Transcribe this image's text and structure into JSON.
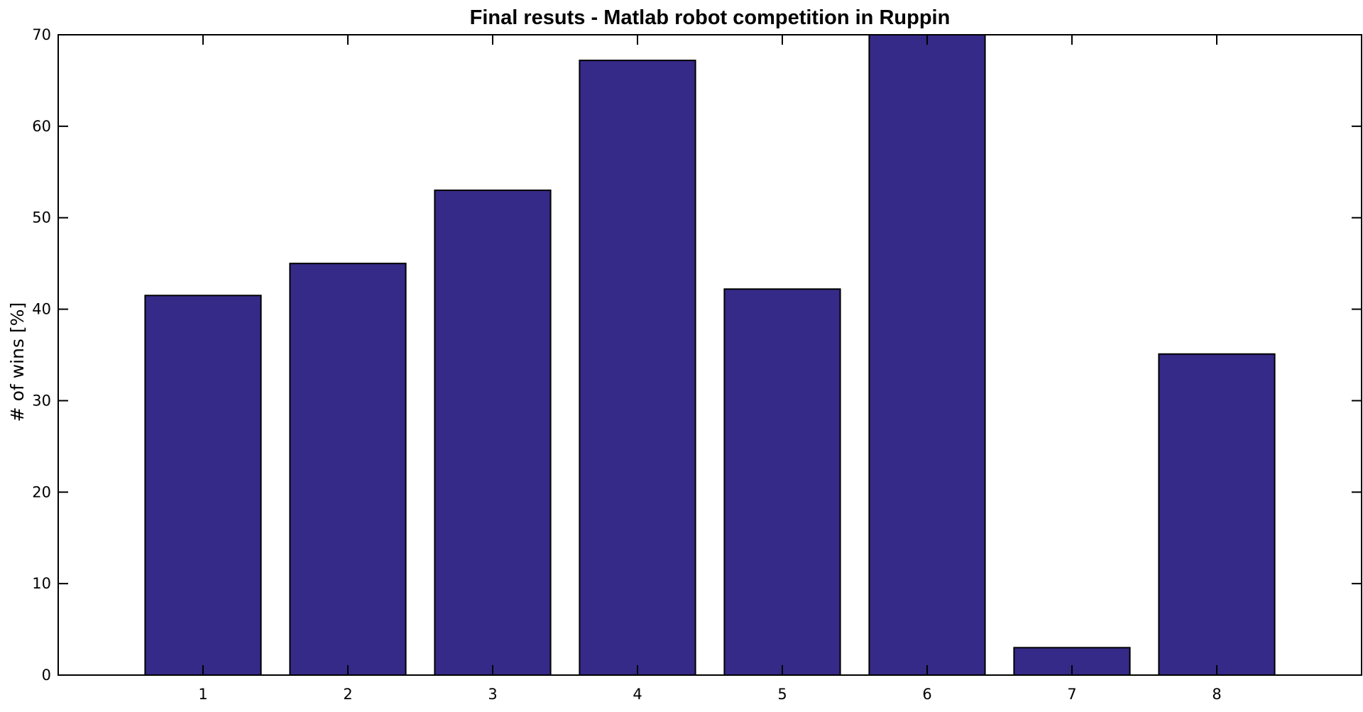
{
  "chart_data": {
    "type": "bar",
    "title": "Final resuts - Matlab robot competition in Ruppin",
    "xlabel": "",
    "ylabel": "# of wins [%]",
    "categories": [
      "1",
      "2",
      "3",
      "4",
      "5",
      "6",
      "7",
      "8"
    ],
    "values": [
      41.5,
      45.0,
      53.0,
      67.2,
      42.2,
      70.0,
      3.0,
      35.1
    ],
    "ylim": [
      0,
      70
    ],
    "yticks": [
      "0",
      "10",
      "20",
      "30",
      "40",
      "50",
      "60",
      "70"
    ],
    "grid": false,
    "legend": "none",
    "colors": {
      "bar_fill": "#352a87",
      "bar_edge": "#000000",
      "axes": "#000000"
    }
  }
}
